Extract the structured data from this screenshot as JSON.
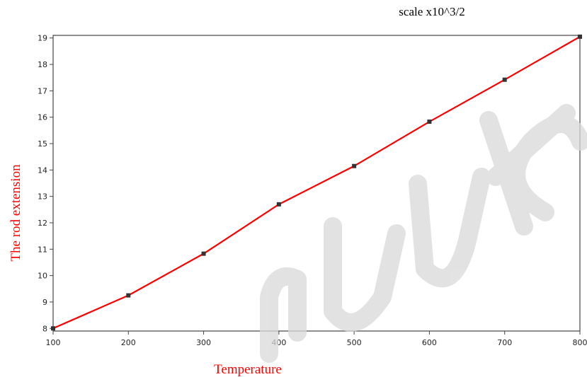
{
  "chart_data": {
    "type": "line",
    "title": "",
    "annotation": "scale x10^3/2",
    "xlabel": "Temperature",
    "ylabel": "The rod extension",
    "x": [
      100,
      200,
      300,
      400,
      500,
      600,
      700,
      800
    ],
    "series": [
      {
        "values": [
          8.0,
          9.25,
          10.83,
          12.7,
          14.15,
          15.83,
          17.42,
          19.05
        ]
      }
    ],
    "xlim": [
      100,
      800
    ],
    "ylim": [
      7.9,
      19.1
    ],
    "xticks": [
      "100",
      "200",
      "300",
      "400",
      "500",
      "600",
      "700",
      "800"
    ],
    "yticks": [
      "8",
      "9",
      "10",
      "11",
      "12",
      "13",
      "14",
      "15",
      "16",
      "17",
      "18",
      "19"
    ],
    "grid": false,
    "colors": {
      "line": "#ff0000",
      "marker": "#333333",
      "labels": "#ff0000",
      "axis": "#333333"
    }
  }
}
